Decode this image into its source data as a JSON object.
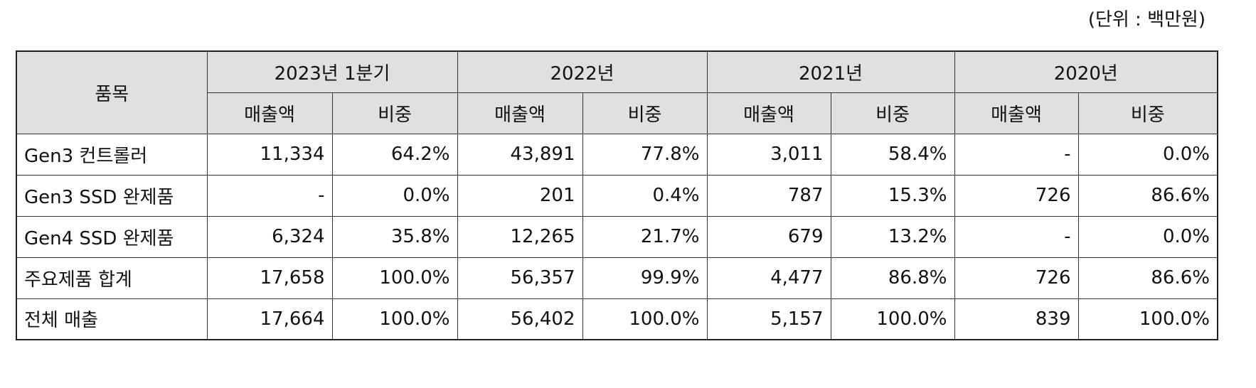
{
  "unit_note": "(단위 : 백만원)",
  "table": {
    "item_header": "품목",
    "periods": [
      "2023년 1분기",
      "2022년",
      "2021년",
      "2020년"
    ],
    "sub_headers": [
      "매출액",
      "비중"
    ],
    "rows": [
      {
        "item": "Gen3 컨트롤러",
        "cells": [
          "11,334",
          "64.2%",
          "43,891",
          "77.8%",
          "3,011",
          "58.4%",
          "-",
          "0.0%"
        ]
      },
      {
        "item": "Gen3 SSD 완제품",
        "cells": [
          "-",
          "0.0%",
          "201",
          "0.4%",
          "787",
          "15.3%",
          "726",
          "86.6%"
        ]
      },
      {
        "item": "Gen4 SSD 완제품",
        "cells": [
          "6,324",
          "35.8%",
          "12,265",
          "21.7%",
          "679",
          "13.2%",
          "-",
          "0.0%"
        ]
      },
      {
        "item": "주요제품 합계",
        "cells": [
          "17,658",
          "100.0%",
          "56,357",
          "99.9%",
          "4,477",
          "86.8%",
          "726",
          "86.6%"
        ]
      },
      {
        "item": "전체 매출",
        "cells": [
          "17,664",
          "100.0%",
          "56,402",
          "100.0%",
          "5,157",
          "100.0%",
          "839",
          "100.0%"
        ]
      }
    ]
  }
}
